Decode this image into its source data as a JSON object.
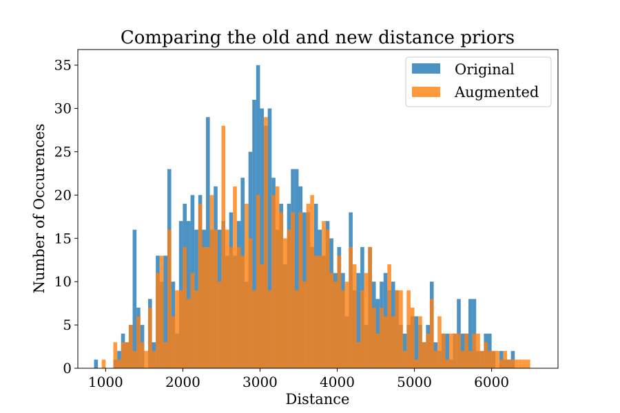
{
  "chart_data": {
    "type": "bar",
    "title": "Comparing the old and new distance priors",
    "xlabel": "Distance",
    "ylabel": "Number of Occurences",
    "xlim": [
      640,
      6860
    ],
    "ylim": [
      0,
      36.8
    ],
    "x_ticks": [
      1000,
      2000,
      3000,
      4000,
      5000,
      6000
    ],
    "y_ticks": [
      0,
      5,
      10,
      15,
      20,
      25,
      30,
      35
    ],
    "legend_position": "top-right",
    "series": [
      {
        "name": "Original",
        "color": "#1f77b4",
        "opacity": 0.8,
        "bin_width": 50,
        "bins": [
          [
            850,
            1
          ],
          [
            1100,
            1
          ],
          [
            1150,
            2
          ],
          [
            1200,
            4
          ],
          [
            1250,
            3
          ],
          [
            1300,
            5
          ],
          [
            1350,
            16
          ],
          [
            1400,
            7
          ],
          [
            1450,
            5
          ],
          [
            1550,
            8
          ],
          [
            1600,
            3
          ],
          [
            1650,
            13
          ],
          [
            1700,
            10
          ],
          [
            1750,
            13
          ],
          [
            1800,
            23
          ],
          [
            1850,
            10
          ],
          [
            1900,
            4
          ],
          [
            1950,
            17
          ],
          [
            2000,
            19
          ],
          [
            2050,
            17
          ],
          [
            2100,
            20
          ],
          [
            2150,
            16
          ],
          [
            2200,
            20
          ],
          [
            2250,
            16
          ],
          [
            2300,
            29
          ],
          [
            2350,
            16
          ],
          [
            2400,
            21
          ],
          [
            2450,
            16
          ],
          [
            2500,
            17
          ],
          [
            2550,
            13
          ],
          [
            2600,
            18
          ],
          [
            2650,
            13
          ],
          [
            2700,
            17
          ],
          [
            2750,
            22
          ],
          [
            2800,
            10
          ],
          [
            2850,
            25
          ],
          [
            2900,
            31
          ],
          [
            2950,
            35
          ],
          [
            3000,
            30
          ],
          [
            3050,
            28
          ],
          [
            3100,
            30
          ],
          [
            3150,
            22
          ],
          [
            3200,
            16
          ],
          [
            3250,
            19
          ],
          [
            3300,
            12
          ],
          [
            3350,
            19
          ],
          [
            3400,
            23
          ],
          [
            3450,
            23
          ],
          [
            3500,
            21
          ],
          [
            3550,
            18
          ],
          [
            3600,
            18
          ],
          [
            3650,
            14
          ],
          [
            3700,
            19
          ],
          [
            3750,
            16
          ],
          [
            3800,
            13
          ],
          [
            3850,
            17
          ],
          [
            3900,
            15
          ],
          [
            3950,
            11
          ],
          [
            4000,
            14
          ],
          [
            4050,
            11
          ],
          [
            4100,
            6
          ],
          [
            4150,
            18
          ],
          [
            4200,
            9
          ],
          [
            4250,
            11
          ],
          [
            4300,
            14
          ],
          [
            4350,
            5
          ],
          [
            4400,
            14
          ],
          [
            4450,
            10
          ],
          [
            4500,
            8
          ],
          [
            4550,
            10
          ],
          [
            4600,
            11
          ],
          [
            4650,
            9
          ],
          [
            4700,
            10
          ],
          [
            4750,
            9
          ],
          [
            4800,
            5
          ],
          [
            4850,
            4
          ],
          [
            4900,
            5
          ],
          [
            4950,
            6
          ],
          [
            5000,
            6
          ],
          [
            5050,
            5
          ],
          [
            5100,
            3
          ],
          [
            5150,
            5
          ],
          [
            5200,
            10
          ],
          [
            5250,
            3
          ],
          [
            5300,
            2
          ],
          [
            5350,
            4
          ],
          [
            5400,
            4
          ],
          [
            5450,
            1
          ],
          [
            5500,
            4
          ],
          [
            5550,
            8
          ],
          [
            5600,
            4
          ],
          [
            5650,
            4
          ],
          [
            5700,
            8
          ],
          [
            5750,
            8
          ],
          [
            5800,
            2
          ],
          [
            5850,
            2
          ],
          [
            5900,
            4
          ],
          [
            5950,
            4
          ],
          [
            6000,
            2
          ],
          [
            6100,
            2
          ],
          [
            6150,
            1
          ],
          [
            6200,
            1
          ],
          [
            6250,
            2
          ]
        ]
      },
      {
        "name": "Augmented",
        "color": "#ff7f0e",
        "opacity": 0.8,
        "bin_width": 50,
        "bins": [
          [
            950,
            1
          ],
          [
            1100,
            3
          ],
          [
            1150,
            1
          ],
          [
            1200,
            3
          ],
          [
            1250,
            3
          ],
          [
            1300,
            5
          ],
          [
            1350,
            2
          ],
          [
            1400,
            6
          ],
          [
            1450,
            3
          ],
          [
            1500,
            2
          ],
          [
            1550,
            7
          ],
          [
            1600,
            2
          ],
          [
            1650,
            11
          ],
          [
            1700,
            13
          ],
          [
            1750,
            3
          ],
          [
            1800,
            16
          ],
          [
            1850,
            6
          ],
          [
            1900,
            9
          ],
          [
            1950,
            9
          ],
          [
            2000,
            14
          ],
          [
            2050,
            8
          ],
          [
            2100,
            11
          ],
          [
            2150,
            9
          ],
          [
            2200,
            19
          ],
          [
            2250,
            14
          ],
          [
            2300,
            14
          ],
          [
            2350,
            20
          ],
          [
            2400,
            16
          ],
          [
            2450,
            10
          ],
          [
            2500,
            28
          ],
          [
            2550,
            16
          ],
          [
            2600,
            14
          ],
          [
            2650,
            21
          ],
          [
            2700,
            14
          ],
          [
            2750,
            13
          ],
          [
            2800,
            19
          ],
          [
            2850,
            15
          ],
          [
            2900,
            9
          ],
          [
            2950,
            20
          ],
          [
            3000,
            12
          ],
          [
            3050,
            29
          ],
          [
            3100,
            9
          ],
          [
            3150,
            20
          ],
          [
            3200,
            21
          ],
          [
            3250,
            18
          ],
          [
            3300,
            15
          ],
          [
            3350,
            16
          ],
          [
            3400,
            18
          ],
          [
            3450,
            9
          ],
          [
            3500,
            18
          ],
          [
            3550,
            10
          ],
          [
            3600,
            19
          ],
          [
            3650,
            20
          ],
          [
            3700,
            13
          ],
          [
            3750,
            13
          ],
          [
            3800,
            17
          ],
          [
            3850,
            16
          ],
          [
            3900,
            11
          ],
          [
            3950,
            10
          ],
          [
            4000,
            13
          ],
          [
            4050,
            9
          ],
          [
            4100,
            10
          ],
          [
            4150,
            14
          ],
          [
            4200,
            12
          ],
          [
            4250,
            3
          ],
          [
            4300,
            9
          ],
          [
            4350,
            11
          ],
          [
            4400,
            14
          ],
          [
            4450,
            7
          ],
          [
            4500,
            4
          ],
          [
            4550,
            7
          ],
          [
            4600,
            6
          ],
          [
            4650,
            12
          ],
          [
            4700,
            6
          ],
          [
            4750,
            9
          ],
          [
            4800,
            9
          ],
          [
            4850,
            2
          ],
          [
            4900,
            9
          ],
          [
            4950,
            7
          ],
          [
            5000,
            1
          ],
          [
            5050,
            6
          ],
          [
            5100,
            3
          ],
          [
            5150,
            4
          ],
          [
            5200,
            8
          ],
          [
            5250,
            2
          ],
          [
            5300,
            6
          ],
          [
            5350,
            4
          ],
          [
            5400,
            1
          ],
          [
            5450,
            4
          ],
          [
            5500,
            4
          ],
          [
            5550,
            4
          ],
          [
            5600,
            2
          ],
          [
            5650,
            4
          ],
          [
            5700,
            2
          ],
          [
            5750,
            4
          ],
          [
            5800,
            4
          ],
          [
            5850,
            2
          ],
          [
            5900,
            3
          ],
          [
            5950,
            2
          ],
          [
            6000,
            2
          ],
          [
            6050,
            2
          ],
          [
            6100,
            1
          ],
          [
            6150,
            2
          ],
          [
            6200,
            1
          ],
          [
            6250,
            1
          ],
          [
            6300,
            1
          ],
          [
            6350,
            1
          ],
          [
            6400,
            1
          ],
          [
            6450,
            1
          ]
        ]
      }
    ]
  }
}
